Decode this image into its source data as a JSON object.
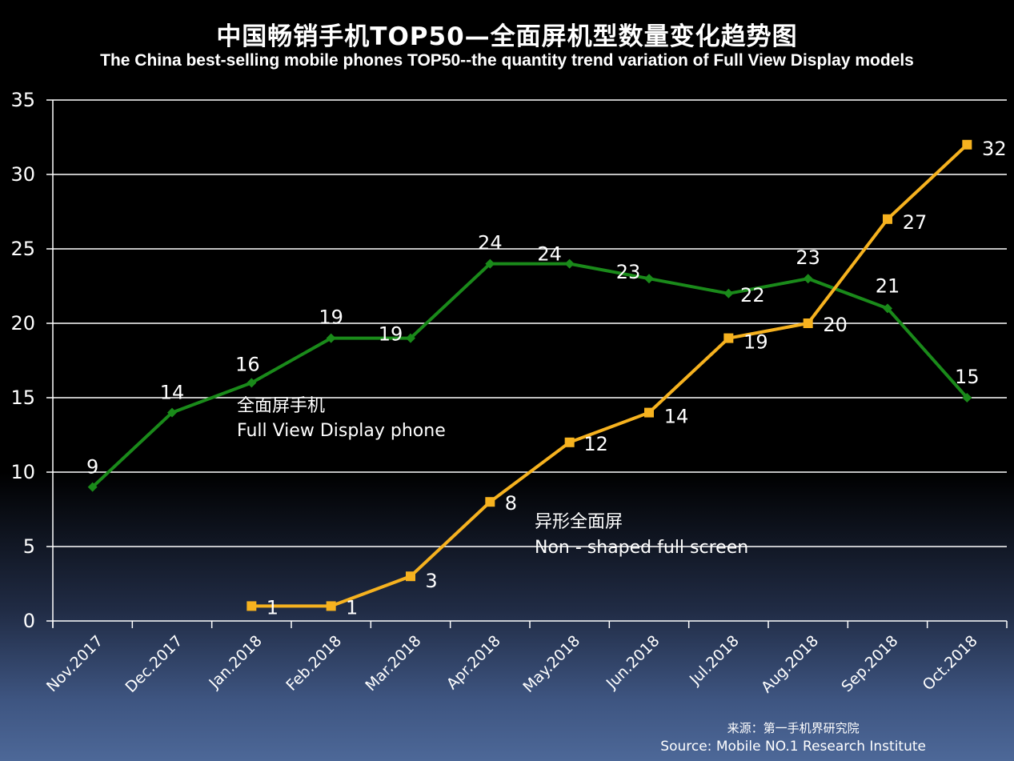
{
  "header": {
    "title_zh": "中国畅销手机TOP50—全面屏机型数量变化趋势图",
    "title_en": "The China best-selling mobile phones TOP50--the quantity trend variation of Full View Display models"
  },
  "source": {
    "zh": "来源：第一手机界研究院",
    "en": "Source: Mobile NO.1 Research Institute"
  },
  "chart_data": {
    "type": "line",
    "categories": [
      "Nov.2017",
      "Dec.2017",
      "Jan.2018",
      "Feb.2018",
      "Mar.2018",
      "Apr.2018",
      "May.2018",
      "Jun.2018",
      "Jul.2018",
      "Aug.2018",
      "Sep.2018",
      "Oct.2018"
    ],
    "ylim": [
      0,
      35
    ],
    "yticks": [
      0,
      5,
      10,
      15,
      20,
      25,
      30,
      35
    ],
    "grid": true,
    "series": [
      {
        "label_zh": "全面屏手机",
        "label_en": "Full View Display phone",
        "color": "#1a8a1a",
        "marker": "diamond",
        "values": [
          9,
          14,
          16,
          19,
          19,
          24,
          24,
          23,
          22,
          23,
          21,
          15
        ]
      },
      {
        "label_zh": "异形全面屏",
        "label_en": "Non - shaped full screen",
        "color": "#f6b21f",
        "marker": "square",
        "values": [
          null,
          null,
          1,
          1,
          3,
          8,
          12,
          14,
          19,
          20,
          27,
          32
        ]
      }
    ]
  }
}
